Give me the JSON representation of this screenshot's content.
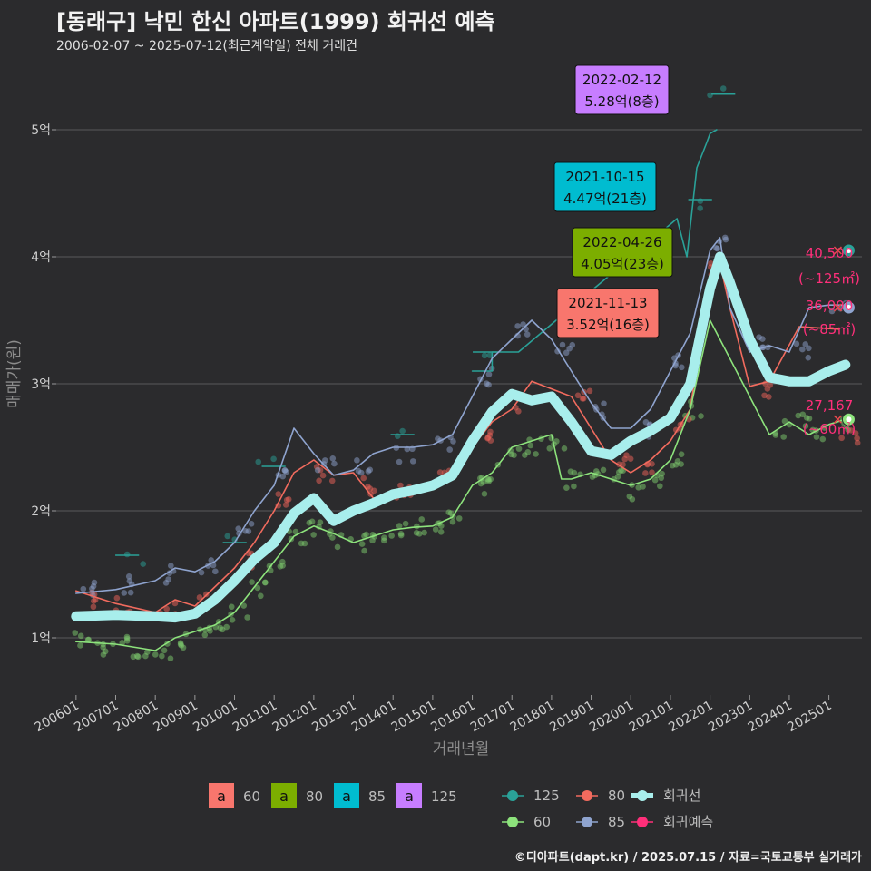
{
  "chart_data": {
    "type": "line",
    "title": "[동래구] 낙민 한신 아파트(1999) 회귀선 예측",
    "subtitle": "2006-02-07 ~ 2025-07-12(최근계약일) 전체 거래건",
    "xlabel": "거래년월",
    "ylabel": "매매가(원)",
    "y_unit": "억",
    "ylim": [
      0.55,
      5.45
    ],
    "xlim": [
      "2005-07",
      "2025-11"
    ],
    "y_ticks": [
      1,
      2,
      3,
      4,
      5
    ],
    "y_tick_labels": [
      "1억",
      "2억",
      "3억",
      "4억",
      "5억"
    ],
    "x_ticks": [
      "2006-01",
      "2007-01",
      "2008-01",
      "2009-01",
      "2010-01",
      "2011-01",
      "2012-01",
      "2013-01",
      "2014-01",
      "2015-01",
      "2016-01",
      "2017-01",
      "2018-01",
      "2019-01",
      "2020-01",
      "2021-01",
      "2022-01",
      "2023-01",
      "2024-01",
      "2025-01"
    ],
    "x_tick_labels": [
      "200601",
      "200701",
      "200801",
      "200901",
      "201001",
      "201101",
      "201201",
      "201301",
      "201401",
      "201501",
      "201601",
      "201701",
      "201801",
      "201901",
      "202001",
      "202101",
      "202201",
      "202301",
      "202401",
      "202501"
    ],
    "grid": true,
    "series": [
      {
        "name": "회귀선",
        "color": "#a8eeec",
        "x": [
          "2006-01",
          "2007-01",
          "2008-01",
          "2008-07",
          "2009-01",
          "2009-07",
          "2010-01",
          "2010-07",
          "2011-01",
          "2011-07",
          "2012-01",
          "2012-07",
          "2013-01",
          "2013-07",
          "2014-01",
          "2014-07",
          "2015-01",
          "2015-07",
          "2016-01",
          "2016-07",
          "2017-01",
          "2017-07",
          "2018-01",
          "2018-07",
          "2019-01",
          "2019-07",
          "2020-01",
          "2020-07",
          "2021-01",
          "2021-07",
          "2022-01",
          "2022-04",
          "2022-07",
          "2023-01",
          "2023-07",
          "2024-01",
          "2024-07",
          "2025-01",
          "2025-06"
        ],
        "y": [
          1.17,
          1.18,
          1.17,
          1.16,
          1.19,
          1.3,
          1.45,
          1.62,
          1.75,
          1.98,
          2.1,
          1.92,
          2.0,
          2.06,
          2.13,
          2.16,
          2.2,
          2.28,
          2.55,
          2.78,
          2.92,
          2.87,
          2.9,
          2.7,
          2.47,
          2.44,
          2.55,
          2.63,
          2.73,
          3.0,
          3.75,
          4.0,
          3.8,
          3.35,
          3.05,
          3.02,
          3.02,
          3.1,
          3.15
        ]
      },
      {
        "name": "125",
        "color": "#2aa198",
        "x": [
          "2016-01",
          "2016-07",
          "2016-07",
          "2017-03",
          "2021-03",
          "2021-06",
          "2021-09",
          "2021-12",
          "2022-01",
          "2022-03"
        ],
        "y": [
          3.1,
          3.1,
          3.25,
          3.25,
          4.3,
          4.0,
          4.7,
          4.9,
          4.97,
          5.0
        ]
      },
      {
        "name": "80",
        "color": "#f26b5e",
        "x": [
          "2006-01",
          "2007-01",
          "2008-01",
          "2008-07",
          "2009-01",
          "2009-07",
          "2010-01",
          "2010-07",
          "2011-01",
          "2011-07",
          "2012-01",
          "2012-07",
          "2013-01",
          "2013-07",
          "2014-01",
          "2014-07",
          "2015-01",
          "2015-07",
          "2016-01",
          "2016-07",
          "2017-01",
          "2017-07",
          "2018-07",
          "2019-07",
          "2020-01",
          "2020-07",
          "2021-01",
          "2021-07",
          "2021-11",
          "2022-01",
          "2022-04",
          "2022-07",
          "2023-01",
          "2023-07",
          "2024-04",
          "2025-04"
        ],
        "y": [
          1.37,
          1.27,
          1.2,
          1.3,
          1.25,
          1.4,
          1.55,
          1.75,
          2.0,
          2.3,
          2.4,
          2.28,
          2.3,
          2.1,
          2.12,
          2.15,
          2.2,
          2.32,
          2.5,
          2.7,
          2.8,
          3.02,
          2.9,
          2.4,
          2.3,
          2.4,
          2.55,
          2.8,
          3.52,
          3.8,
          3.95,
          3.6,
          2.98,
          3.02,
          3.45,
          3.43
        ]
      },
      {
        "name": "85",
        "color": "#8fa4cf",
        "x": [
          "2006-01",
          "2007-01",
          "2008-01",
          "2008-07",
          "2009-01",
          "2009-07",
          "2010-01",
          "2010-07",
          "2011-01",
          "2011-07",
          "2012-01",
          "2012-07",
          "2013-01",
          "2013-07",
          "2014-01",
          "2014-07",
          "2015-01",
          "2015-07",
          "2016-01",
          "2016-07",
          "2017-01",
          "2017-07",
          "2018-01",
          "2018-07",
          "2019-01",
          "2019-07",
          "2020-01",
          "2020-07",
          "2021-01",
          "2021-07",
          "2022-01",
          "2022-04",
          "2022-07",
          "2023-01",
          "2023-07",
          "2024-01",
          "2024-07",
          "2025-01",
          "2025-05"
        ],
        "y": [
          1.35,
          1.38,
          1.45,
          1.55,
          1.52,
          1.6,
          1.75,
          2.0,
          2.2,
          2.65,
          2.45,
          2.28,
          2.32,
          2.45,
          2.5,
          2.5,
          2.52,
          2.6,
          2.9,
          3.2,
          3.35,
          3.5,
          3.35,
          3.1,
          2.85,
          2.65,
          2.65,
          2.8,
          3.1,
          3.4,
          4.05,
          4.15,
          3.6,
          3.25,
          3.3,
          3.25,
          3.6,
          3.62,
          3.62
        ]
      },
      {
        "name": "60",
        "color": "#8de37c",
        "x": [
          "2006-01",
          "2007-01",
          "2008-01",
          "2008-07",
          "2009-01",
          "2009-07",
          "2010-01",
          "2010-07",
          "2011-01",
          "2011-07",
          "2012-01",
          "2012-07",
          "2013-01",
          "2013-07",
          "2014-01",
          "2014-07",
          "2015-01",
          "2015-07",
          "2016-01",
          "2016-07",
          "2017-01",
          "2017-07",
          "2018-01",
          "2018-04",
          "2018-07",
          "2019-01",
          "2019-07",
          "2020-01",
          "2020-07",
          "2021-01",
          "2021-07",
          "2022-01",
          "2023-07",
          "2024-01",
          "2024-07",
          "2025-01",
          "2025-06"
        ],
        "y": [
          0.97,
          0.95,
          0.9,
          1.0,
          1.05,
          1.1,
          1.2,
          1.4,
          1.6,
          1.8,
          1.88,
          1.82,
          1.75,
          1.8,
          1.85,
          1.87,
          1.88,
          1.95,
          2.2,
          2.3,
          2.5,
          2.55,
          2.6,
          2.25,
          2.25,
          2.3,
          2.25,
          2.2,
          2.25,
          2.4,
          2.8,
          3.5,
          2.6,
          2.7,
          2.6,
          2.68,
          2.72
        ]
      }
    ],
    "scatter_groups": [
      {
        "name": "60",
        "color": "#7ecb6d",
        "center": [
          [
            2006.2,
            0.98
          ],
          [
            2006.6,
            0.93
          ],
          [
            2007.1,
            0.95
          ],
          [
            2007.6,
            0.88
          ],
          [
            2008.2,
            0.9
          ],
          [
            2008.7,
            0.97
          ],
          [
            2009.2,
            1.06
          ],
          [
            2009.6,
            1.1
          ],
          [
            2010.1,
            1.2
          ],
          [
            2010.6,
            1.38
          ],
          [
            2011.1,
            1.6
          ],
          [
            2011.6,
            1.78
          ],
          [
            2012.1,
            1.85
          ],
          [
            2012.6,
            1.78
          ],
          [
            2013.1,
            1.75
          ],
          [
            2013.6,
            1.78
          ],
          [
            2014.1,
            1.83
          ],
          [
            2014.6,
            1.87
          ],
          [
            2015.1,
            1.9
          ],
          [
            2015.6,
            1.95
          ],
          [
            2016.1,
            2.2
          ],
          [
            2016.6,
            2.3
          ],
          [
            2017.1,
            2.45
          ],
          [
            2017.6,
            2.5
          ],
          [
            2018.1,
            2.55
          ],
          [
            2018.6,
            2.25
          ],
          [
            2019.1,
            2.28
          ],
          [
            2019.6,
            2.25
          ],
          [
            2020.1,
            2.15
          ],
          [
            2020.6,
            2.25
          ],
          [
            2021.1,
            2.4
          ],
          [
            2021.6,
            2.8
          ],
          [
            2023.8,
            2.65
          ],
          [
            2024.3,
            2.72
          ],
          [
            2024.8,
            2.62
          ],
          [
            2025.3,
            2.7
          ]
        ]
      },
      {
        "name": "80",
        "color": "#f0635a",
        "center": [
          [
            2006.3,
            1.3
          ],
          [
            2007.2,
            1.25
          ],
          [
            2008.3,
            1.22
          ],
          [
            2009.3,
            1.3
          ],
          [
            2010.3,
            1.6
          ],
          [
            2011.3,
            2.1
          ],
          [
            2012.3,
            2.3
          ],
          [
            2013.3,
            2.2
          ],
          [
            2014.3,
            2.15
          ],
          [
            2015.3,
            2.25
          ],
          [
            2016.3,
            2.6
          ],
          [
            2017.3,
            2.85
          ],
          [
            2018.8,
            2.9
          ],
          [
            2019.8,
            2.4
          ],
          [
            2020.5,
            2.35
          ],
          [
            2021.3,
            2.7
          ],
          [
            2022.2,
            3.9
          ],
          [
            2023.4,
            2.95
          ],
          [
            2025.5,
            2.6
          ]
        ]
      },
      {
        "name": "85",
        "color": "#8ea2cc",
        "center": [
          [
            2006.3,
            1.38
          ],
          [
            2007.3,
            1.42
          ],
          [
            2008.3,
            1.5
          ],
          [
            2009.3,
            1.55
          ],
          [
            2010.3,
            1.85
          ],
          [
            2011.3,
            2.3
          ],
          [
            2012.3,
            2.35
          ],
          [
            2013.3,
            2.35
          ],
          [
            2014.3,
            2.45
          ],
          [
            2015.3,
            2.55
          ],
          [
            2016.3,
            3.05
          ],
          [
            2017.3,
            3.4
          ],
          [
            2018.3,
            3.3
          ],
          [
            2019.3,
            2.8
          ],
          [
            2020.3,
            2.65
          ],
          [
            2021.3,
            3.2
          ],
          [
            2022.3,
            4.1
          ],
          [
            2023.3,
            3.3
          ],
          [
            2024.3,
            3.25
          ],
          [
            2025.3,
            3.6
          ]
        ]
      },
      {
        "name": "125",
        "color": "#2aa198",
        "center": [
          [
            2007.5,
            1.65
          ],
          [
            2009.8,
            1.75
          ],
          [
            2010.8,
            2.35
          ],
          [
            2014.3,
            2.6
          ],
          [
            2016.5,
            3.25
          ],
          [
            2021.8,
            4.45
          ],
          [
            2022.2,
            5.28
          ]
        ]
      }
    ],
    "predictions": [
      {
        "name": "125",
        "color": "#2aa198",
        "x": "2025-07",
        "y": 4.05,
        "label": "40,500",
        "area": "(~125㎡)"
      },
      {
        "name": "85",
        "color": "#8fa4cf",
        "x": "2025-07",
        "y": 3.6,
        "label": "36,000",
        "area": "(~85㎡)"
      },
      {
        "name": "60",
        "color": "#8de37c",
        "x": "2025-07",
        "y": 2.72,
        "label": "27,167",
        "area": "(~60㎡)"
      }
    ],
    "callouts": [
      {
        "date": "2022-02-12",
        "price": "5.28억(8층)",
        "color": "#c77dff",
        "x": "2022-02",
        "y": 5.28
      },
      {
        "date": "2021-10-15",
        "price": "4.47억(21층)",
        "color": "#00bcd0",
        "x": "2021-10",
        "y": 4.47
      },
      {
        "date": "2022-04-26",
        "price": "4.05억(23층)",
        "color": "#7cae00",
        "x": "2022-04",
        "y": 4.05
      },
      {
        "date": "2021-11-13",
        "price": "3.52억(16층)",
        "color": "#f8766d",
        "x": "2021-11",
        "y": 3.52
      }
    ],
    "legend_placement": "bottom",
    "legend_fill": [
      {
        "label": "60",
        "color": "#f8766d",
        "key": "a"
      },
      {
        "label": "80",
        "color": "#7cae00",
        "key": "a"
      },
      {
        "label": "85",
        "color": "#00bcd0",
        "key": "a"
      },
      {
        "label": "125",
        "color": "#c77dff",
        "key": "a"
      }
    ],
    "legend_lines": [
      {
        "label": "125",
        "color": "#2aa198"
      },
      {
        "label": "80",
        "color": "#f26b5e"
      },
      {
        "label": "회귀선",
        "color": "#a8eeec"
      },
      {
        "label": "60",
        "color": "#8de37c"
      },
      {
        "label": "85",
        "color": "#8fa4cf"
      },
      {
        "label": "회귀예측",
        "color": "#ff2f7a"
      }
    ]
  },
  "credit": "©디아파트(dapt.kr) / 2025.07.15 / 자료=국토교통부 실거래가"
}
